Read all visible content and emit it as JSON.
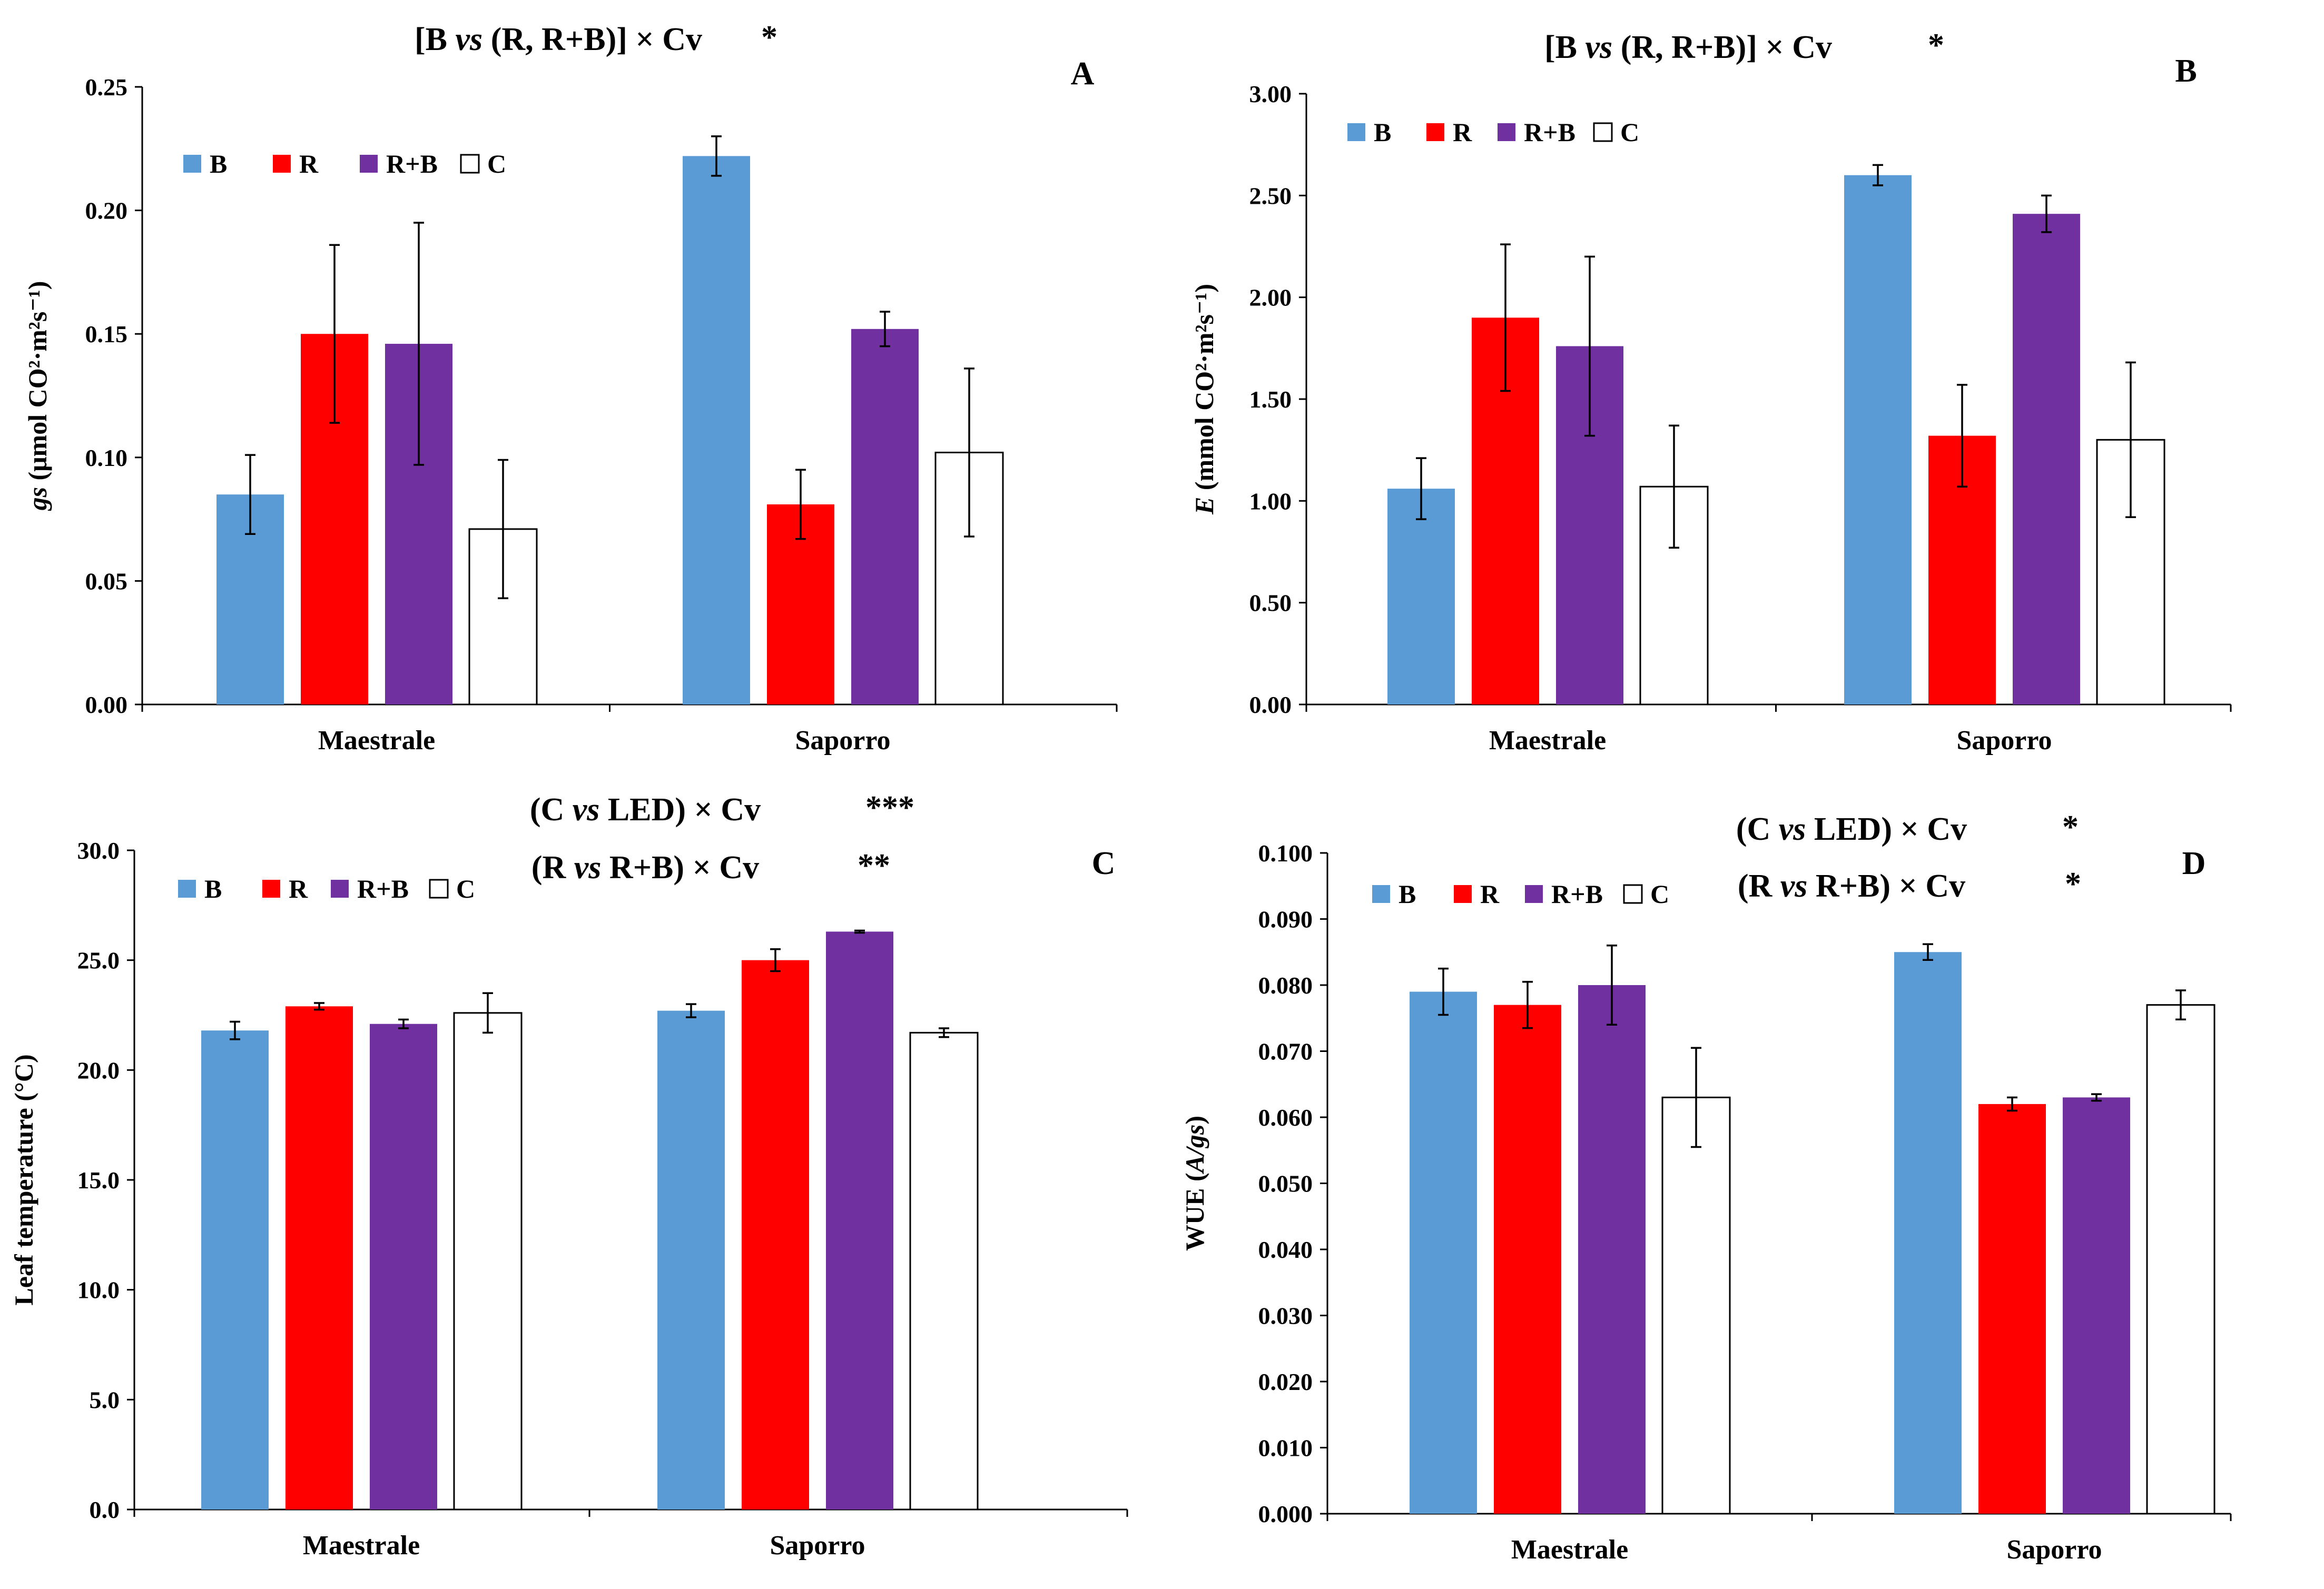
{
  "colors": {
    "B": "#5b9bd5",
    "R": "#ff0000",
    "R+B": "#7030a0",
    "C": "#ffffff"
  },
  "legend": [
    "B",
    "R",
    "R+B",
    "C"
  ],
  "chart_data": [
    {
      "type": "bar",
      "panel": "A",
      "title_lines": [
        {
          "parts": [
            {
              "text": "[B ",
              "italic": false
            },
            {
              "text": "vs",
              "italic": true
            },
            {
              "text": " (R, R+B)] × Cv",
              "italic": false
            }
          ],
          "stars": "*"
        }
      ],
      "ylabel_parts": [
        {
          "text": "gs",
          "italic": true
        },
        {
          "text": " (μmol CO²·m²s⁻¹)",
          "italic": false
        }
      ],
      "xlabel": "",
      "categories": [
        "Maestrale",
        "Saporro"
      ],
      "series": [
        {
          "name": "B",
          "values": [
            0.085,
            0.222
          ],
          "errors": [
            0.016,
            0.008
          ]
        },
        {
          "name": "R",
          "values": [
            0.15,
            0.081
          ],
          "errors": [
            0.036,
            0.014
          ]
        },
        {
          "name": "R+B",
          "values": [
            0.146,
            0.152
          ],
          "errors": [
            0.049,
            0.007
          ]
        },
        {
          "name": "C",
          "values": [
            0.071,
            0.102
          ],
          "errors": [
            0.028,
            0.034
          ]
        }
      ],
      "ylim": [
        0,
        0.25
      ],
      "yticks": [
        "0.00",
        "0.05",
        "0.10",
        "0.15",
        "0.20",
        "0.25"
      ]
    },
    {
      "type": "bar",
      "panel": "B",
      "title_lines": [
        {
          "parts": [
            {
              "text": "[B ",
              "italic": false
            },
            {
              "text": "vs",
              "italic": true
            },
            {
              "text": " (R, R+B)] × Cv",
              "italic": false
            }
          ],
          "stars": "*"
        }
      ],
      "ylabel_parts": [
        {
          "text": "E",
          "italic": true
        },
        {
          "text": " (mmol CO²·m²s⁻¹)",
          "italic": false
        }
      ],
      "xlabel": "",
      "categories": [
        "Maestrale",
        "Saporro"
      ],
      "series": [
        {
          "name": "B",
          "values": [
            1.06,
            2.6
          ],
          "errors": [
            0.15,
            0.05
          ]
        },
        {
          "name": "R",
          "values": [
            1.9,
            1.32
          ],
          "errors": [
            0.36,
            0.25
          ]
        },
        {
          "name": "R+B",
          "values": [
            1.76,
            2.41
          ],
          "errors": [
            0.44,
            0.09
          ]
        },
        {
          "name": "C",
          "values": [
            1.07,
            1.3
          ],
          "errors": [
            0.3,
            0.38
          ]
        }
      ],
      "ylim": [
        0,
        3.0
      ],
      "yticks": [
        "0.00",
        "0.50",
        "1.00",
        "1.50",
        "2.00",
        "2.50",
        "3.00"
      ]
    },
    {
      "type": "bar",
      "panel": "C",
      "title_lines": [
        {
          "parts": [
            {
              "text": "(C ",
              "italic": false
            },
            {
              "text": "vs",
              "italic": true
            },
            {
              "text": " LED) × Cv",
              "italic": false
            }
          ],
          "stars": "***"
        },
        {
          "parts": [
            {
              "text": "(R ",
              "italic": false
            },
            {
              "text": "vs",
              "italic": true
            },
            {
              "text": " R+B) × Cv",
              "italic": false
            }
          ],
          "stars": "**"
        }
      ],
      "ylabel_parts": [
        {
          "text": "Leaf temperature (°C)",
          "italic": false
        }
      ],
      "xlabel": "",
      "categories": [
        "Maestrale",
        "Saporro"
      ],
      "series": [
        {
          "name": "B",
          "values": [
            21.8,
            22.7
          ],
          "errors": [
            0.4,
            0.3
          ]
        },
        {
          "name": "R",
          "values": [
            22.9,
            25.0
          ],
          "errors": [
            0.15,
            0.5
          ]
        },
        {
          "name": "R+B",
          "values": [
            22.1,
            26.3
          ],
          "errors": [
            0.2,
            0.05
          ]
        },
        {
          "name": "C",
          "values": [
            22.6,
            21.7
          ],
          "errors": [
            0.9,
            0.2
          ]
        }
      ],
      "ylim": [
        0,
        30
      ],
      "yticks": [
        "0.0",
        "5.0",
        "10.0",
        "15.0",
        "20.0",
        "25.0",
        "30.0"
      ]
    },
    {
      "type": "bar",
      "panel": "D",
      "title_lines": [
        {
          "parts": [
            {
              "text": "(C ",
              "italic": false
            },
            {
              "text": "vs",
              "italic": true
            },
            {
              "text": " LED) × Cv",
              "italic": false
            }
          ],
          "stars": "*"
        },
        {
          "parts": [
            {
              "text": "(R ",
              "italic": false
            },
            {
              "text": "vs",
              "italic": true
            },
            {
              "text": " R+B) × Cv",
              "italic": false
            }
          ],
          "stars": "*"
        }
      ],
      "ylabel_parts": [
        {
          "text": "WUE  (",
          "italic": false
        },
        {
          "text": "A/gs",
          "italic": true
        },
        {
          "text": ")",
          "italic": false
        }
      ],
      "xlabel": "",
      "categories": [
        "Maestrale",
        "Saporro"
      ],
      "series": [
        {
          "name": "B",
          "values": [
            0.079,
            0.085
          ],
          "errors": [
            0.0035,
            0.0012
          ]
        },
        {
          "name": "R",
          "values": [
            0.077,
            0.062
          ],
          "errors": [
            0.0035,
            0.001
          ]
        },
        {
          "name": "R+B",
          "values": [
            0.08,
            0.063
          ],
          "errors": [
            0.006,
            0.0005
          ]
        },
        {
          "name": "C",
          "values": [
            0.063,
            0.077
          ],
          "errors": [
            0.0075,
            0.0022
          ]
        }
      ],
      "ylim": [
        0,
        0.1
      ],
      "yticks": [
        "0.000",
        "0.010",
        "0.020",
        "0.030",
        "0.040",
        "0.050",
        "0.060",
        "0.070",
        "0.080",
        "0.090",
        "0.100"
      ]
    }
  ]
}
